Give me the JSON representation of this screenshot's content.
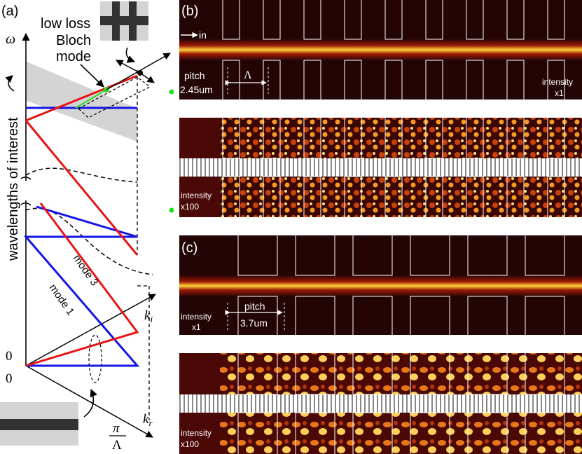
{
  "panel_a": {
    "label": "(a)",
    "omega_axis": "ω",
    "y_label": "wavelengths of interest",
    "inset_label_line1": "low loss",
    "inset_label_line2": "Bloch",
    "inset_label_line3": "mode",
    "mode3_label": "mode 3",
    "mode1_label": "mode 1",
    "zero_top": "0",
    "zero_bottom": "0",
    "ki_label": "k",
    "ki_sub": "i",
    "kr_label": "k",
    "kr_sub": "r",
    "pi_label": "π",
    "lambda_label": "Λ",
    "colors": {
      "mode1": "#1515e6",
      "mode3": "#e61515",
      "lowloss": "#22dd22",
      "band": "#d4d4d4"
    }
  },
  "panel_b": {
    "label": "(b)",
    "in_label": "in",
    "pitch_label": "pitch",
    "pitch_value": "2.45um",
    "lambda_marker": "Λ",
    "intensity_top_1": "intensity",
    "intensity_top_2": "x1",
    "intensity_bottom_1": "intensity",
    "intensity_bottom_2": "x100"
  },
  "panel_c": {
    "label": "(c)",
    "intensity_top_1": "intensity",
    "intensity_top_2": "x1",
    "pitch_label": "pitch",
    "pitch_value": "3.7um",
    "intensity_bottom_1": "intensity",
    "intensity_bottom_2": "x100"
  }
}
